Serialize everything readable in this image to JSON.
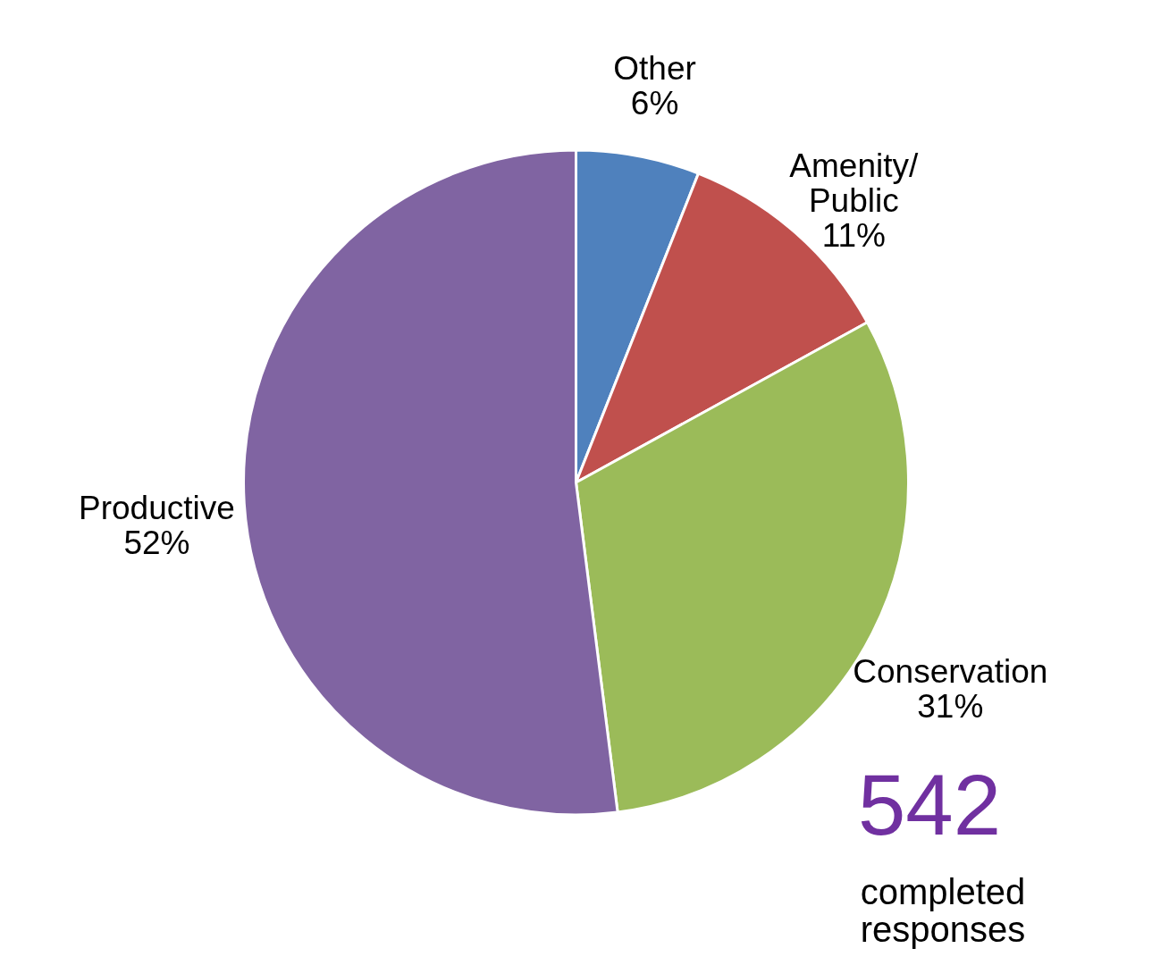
{
  "chart_data": {
    "type": "pie",
    "categories": [
      "Other",
      "Amenity/\nPublic",
      "Conservation",
      "Productive"
    ],
    "values": [
      6,
      11,
      31,
      52
    ],
    "colors": [
      "#4f81bd",
      "#c0504d",
      "#9bbb59",
      "#8064a2"
    ],
    "value_labels": [
      "6%",
      "11%",
      "31%",
      "52%"
    ],
    "annotations": [
      "542",
      "completed\nresponses"
    ]
  }
}
